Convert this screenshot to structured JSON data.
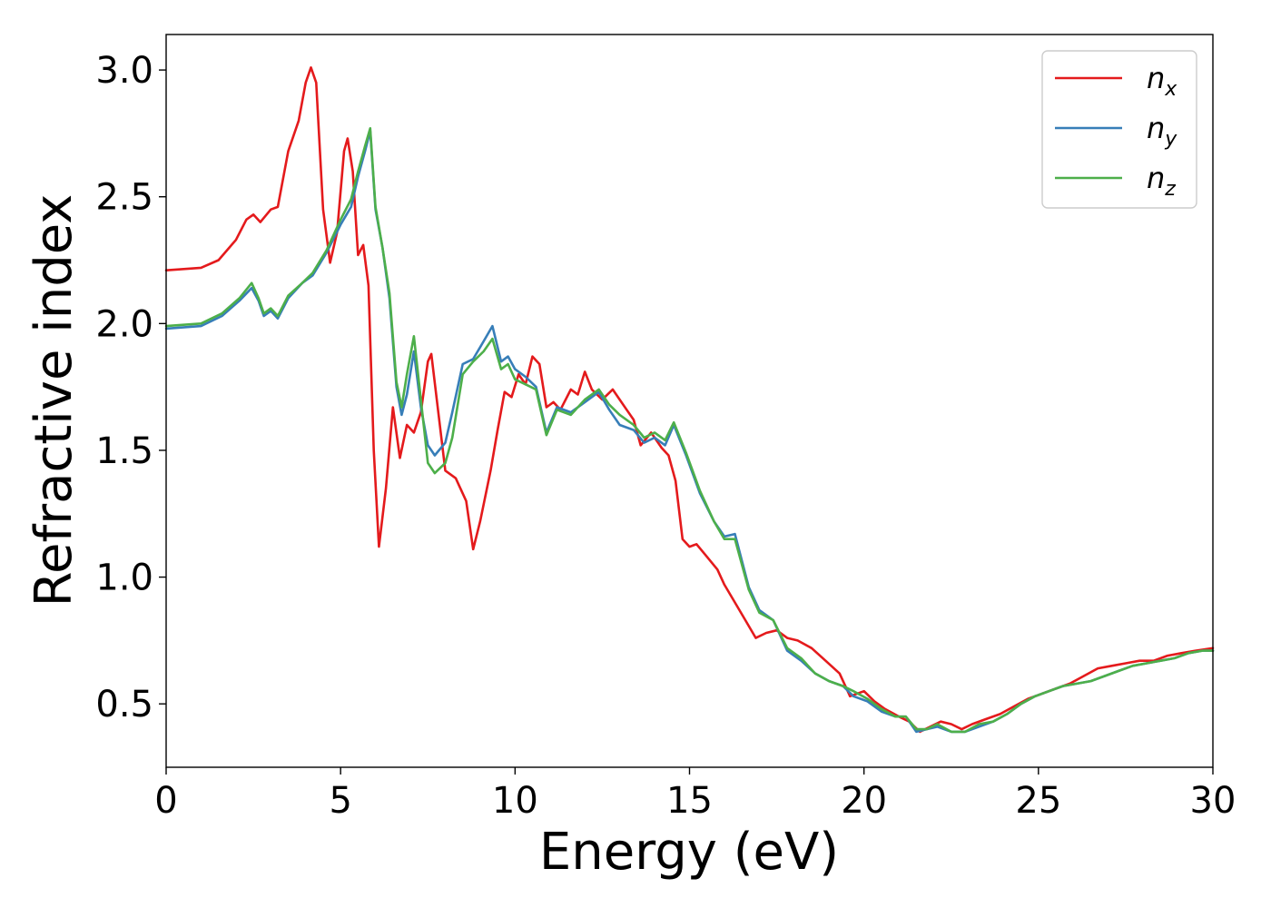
{
  "chart_data": {
    "type": "line",
    "title": "",
    "xlabel": "Energy (eV)",
    "ylabel": "Refractive index",
    "xlim": [
      0,
      30
    ],
    "ylim": [
      0.25,
      3.14
    ],
    "x_ticks": [
      0,
      5,
      10,
      15,
      20,
      25,
      30
    ],
    "x_tick_labels": [
      "0",
      "5",
      "10",
      "15",
      "20",
      "25",
      "30"
    ],
    "y_ticks": [
      0.5,
      1.0,
      1.5,
      2.0,
      2.5,
      3.0
    ],
    "y_tick_labels": [
      "0.5",
      "1.0",
      "1.5",
      "2.0",
      "2.5",
      "3.0"
    ],
    "grid": false,
    "legend_position": "top-right",
    "series": [
      {
        "name": "n",
        "subscript": "x",
        "color": "#e41a1c",
        "points": [
          [
            0,
            2.21
          ],
          [
            1,
            2.22
          ],
          [
            1.5,
            2.25
          ],
          [
            2,
            2.33
          ],
          [
            2.3,
            2.41
          ],
          [
            2.5,
            2.43
          ],
          [
            2.7,
            2.4
          ],
          [
            3.0,
            2.45
          ],
          [
            3.2,
            2.46
          ],
          [
            3.5,
            2.68
          ],
          [
            3.8,
            2.8
          ],
          [
            4.0,
            2.95
          ],
          [
            4.15,
            3.01
          ],
          [
            4.3,
            2.95
          ],
          [
            4.5,
            2.45
          ],
          [
            4.7,
            2.24
          ],
          [
            4.9,
            2.36
          ],
          [
            5.1,
            2.68
          ],
          [
            5.2,
            2.73
          ],
          [
            5.35,
            2.6
          ],
          [
            5.5,
            2.27
          ],
          [
            5.65,
            2.31
          ],
          [
            5.8,
            2.15
          ],
          [
            5.95,
            1.5
          ],
          [
            6.1,
            1.12
          ],
          [
            6.3,
            1.35
          ],
          [
            6.5,
            1.67
          ],
          [
            6.7,
            1.47
          ],
          [
            6.9,
            1.6
          ],
          [
            7.1,
            1.57
          ],
          [
            7.3,
            1.65
          ],
          [
            7.5,
            1.85
          ],
          [
            7.6,
            1.88
          ],
          [
            7.8,
            1.65
          ],
          [
            8.0,
            1.42
          ],
          [
            8.3,
            1.39
          ],
          [
            8.6,
            1.3
          ],
          [
            8.8,
            1.11
          ],
          [
            9.0,
            1.22
          ],
          [
            9.3,
            1.42
          ],
          [
            9.5,
            1.58
          ],
          [
            9.7,
            1.73
          ],
          [
            9.9,
            1.71
          ],
          [
            10.1,
            1.8
          ],
          [
            10.3,
            1.76
          ],
          [
            10.5,
            1.87
          ],
          [
            10.7,
            1.84
          ],
          [
            10.9,
            1.67
          ],
          [
            11.1,
            1.69
          ],
          [
            11.3,
            1.66
          ],
          [
            11.6,
            1.74
          ],
          [
            11.8,
            1.72
          ],
          [
            12.0,
            1.81
          ],
          [
            12.2,
            1.74
          ],
          [
            12.5,
            1.7
          ],
          [
            12.8,
            1.74
          ],
          [
            13.0,
            1.7
          ],
          [
            13.2,
            1.66
          ],
          [
            13.4,
            1.62
          ],
          [
            13.6,
            1.52
          ],
          [
            13.9,
            1.57
          ],
          [
            14.2,
            1.51
          ],
          [
            14.4,
            1.48
          ],
          [
            14.6,
            1.38
          ],
          [
            14.8,
            1.15
          ],
          [
            15.0,
            1.12
          ],
          [
            15.2,
            1.13
          ],
          [
            15.5,
            1.08
          ],
          [
            15.8,
            1.03
          ],
          [
            16.0,
            0.97
          ],
          [
            16.3,
            0.9
          ],
          [
            16.6,
            0.83
          ],
          [
            16.9,
            0.76
          ],
          [
            17.2,
            0.78
          ],
          [
            17.5,
            0.79
          ],
          [
            17.8,
            0.76
          ],
          [
            18.1,
            0.75
          ],
          [
            18.5,
            0.72
          ],
          [
            18.9,
            0.67
          ],
          [
            19.3,
            0.62
          ],
          [
            19.6,
            0.53
          ],
          [
            20.0,
            0.55
          ],
          [
            20.3,
            0.51
          ],
          [
            20.6,
            0.48
          ],
          [
            21.0,
            0.45
          ],
          [
            21.3,
            0.43
          ],
          [
            21.6,
            0.39
          ],
          [
            21.9,
            0.41
          ],
          [
            22.2,
            0.43
          ],
          [
            22.5,
            0.42
          ],
          [
            22.8,
            0.4
          ],
          [
            23.1,
            0.42
          ],
          [
            23.5,
            0.44
          ],
          [
            23.9,
            0.46
          ],
          [
            24.3,
            0.49
          ],
          [
            24.7,
            0.52
          ],
          [
            25.1,
            0.54
          ],
          [
            25.5,
            0.56
          ],
          [
            25.9,
            0.58
          ],
          [
            26.3,
            0.61
          ],
          [
            26.7,
            0.64
          ],
          [
            27.1,
            0.65
          ],
          [
            27.5,
            0.66
          ],
          [
            27.9,
            0.67
          ],
          [
            28.3,
            0.67
          ],
          [
            28.7,
            0.69
          ],
          [
            29.1,
            0.7
          ],
          [
            29.5,
            0.71
          ],
          [
            30.0,
            0.72
          ]
        ]
      },
      {
        "name": "n",
        "subscript": "y",
        "color": "#377eb8",
        "points": [
          [
            0,
            1.98
          ],
          [
            1,
            1.99
          ],
          [
            1.6,
            2.03
          ],
          [
            2.1,
            2.09
          ],
          [
            2.45,
            2.14
          ],
          [
            2.65,
            2.09
          ],
          [
            2.8,
            2.03
          ],
          [
            3.0,
            2.05
          ],
          [
            3.2,
            2.02
          ],
          [
            3.5,
            2.1
          ],
          [
            3.9,
            2.16
          ],
          [
            4.2,
            2.19
          ],
          [
            4.6,
            2.28
          ],
          [
            5.0,
            2.39
          ],
          [
            5.3,
            2.46
          ],
          [
            5.5,
            2.58
          ],
          [
            5.7,
            2.68
          ],
          [
            5.85,
            2.76
          ],
          [
            6.0,
            2.45
          ],
          [
            6.2,
            2.3
          ],
          [
            6.4,
            2.1
          ],
          [
            6.6,
            1.75
          ],
          [
            6.75,
            1.64
          ],
          [
            6.9,
            1.72
          ],
          [
            7.1,
            1.89
          ],
          [
            7.3,
            1.67
          ],
          [
            7.5,
            1.52
          ],
          [
            7.7,
            1.48
          ],
          [
            8.0,
            1.53
          ],
          [
            8.2,
            1.65
          ],
          [
            8.5,
            1.84
          ],
          [
            8.8,
            1.86
          ],
          [
            9.1,
            1.93
          ],
          [
            9.35,
            1.99
          ],
          [
            9.6,
            1.85
          ],
          [
            9.8,
            1.87
          ],
          [
            10.0,
            1.82
          ],
          [
            10.3,
            1.79
          ],
          [
            10.6,
            1.75
          ],
          [
            10.9,
            1.57
          ],
          [
            11.2,
            1.67
          ],
          [
            11.6,
            1.65
          ],
          [
            12.0,
            1.69
          ],
          [
            12.4,
            1.73
          ],
          [
            12.7,
            1.66
          ],
          [
            13.0,
            1.6
          ],
          [
            13.4,
            1.58
          ],
          [
            13.7,
            1.53
          ],
          [
            14.0,
            1.55
          ],
          [
            14.3,
            1.52
          ],
          [
            14.55,
            1.6
          ],
          [
            14.9,
            1.48
          ],
          [
            15.3,
            1.33
          ],
          [
            15.7,
            1.22
          ],
          [
            16.0,
            1.16
          ],
          [
            16.3,
            1.17
          ],
          [
            16.7,
            0.96
          ],
          [
            17.0,
            0.87
          ],
          [
            17.4,
            0.83
          ],
          [
            17.8,
            0.71
          ],
          [
            18.2,
            0.67
          ],
          [
            18.6,
            0.62
          ],
          [
            19.0,
            0.59
          ],
          [
            19.4,
            0.57
          ],
          [
            19.7,
            0.53
          ],
          [
            20.1,
            0.51
          ],
          [
            20.5,
            0.47
          ],
          [
            20.9,
            0.45
          ],
          [
            21.2,
            0.45
          ],
          [
            21.5,
            0.39
          ],
          [
            21.8,
            0.4
          ],
          [
            22.1,
            0.41
          ],
          [
            22.5,
            0.39
          ],
          [
            22.9,
            0.39
          ],
          [
            23.3,
            0.41
          ],
          [
            23.7,
            0.43
          ],
          [
            24.1,
            0.46
          ],
          [
            24.5,
            0.5
          ],
          [
            24.9,
            0.53
          ],
          [
            25.3,
            0.55
          ],
          [
            25.7,
            0.57
          ],
          [
            26.1,
            0.58
          ],
          [
            26.5,
            0.59
          ],
          [
            26.9,
            0.61
          ],
          [
            27.3,
            0.63
          ],
          [
            27.7,
            0.65
          ],
          [
            28.1,
            0.66
          ],
          [
            28.5,
            0.67
          ],
          [
            28.9,
            0.68
          ],
          [
            29.3,
            0.7
          ],
          [
            29.7,
            0.71
          ],
          [
            30.0,
            0.71
          ]
        ]
      },
      {
        "name": "n",
        "subscript": "z",
        "color": "#4daf4a",
        "points": [
          [
            0,
            1.99
          ],
          [
            1,
            2.0
          ],
          [
            1.6,
            2.04
          ],
          [
            2.1,
            2.1
          ],
          [
            2.45,
            2.16
          ],
          [
            2.65,
            2.1
          ],
          [
            2.8,
            2.04
          ],
          [
            3.0,
            2.06
          ],
          [
            3.2,
            2.03
          ],
          [
            3.5,
            2.11
          ],
          [
            3.9,
            2.16
          ],
          [
            4.2,
            2.2
          ],
          [
            4.6,
            2.29
          ],
          [
            5.0,
            2.41
          ],
          [
            5.3,
            2.49
          ],
          [
            5.5,
            2.6
          ],
          [
            5.7,
            2.7
          ],
          [
            5.85,
            2.77
          ],
          [
            6.0,
            2.46
          ],
          [
            6.2,
            2.3
          ],
          [
            6.4,
            2.12
          ],
          [
            6.6,
            1.77
          ],
          [
            6.75,
            1.67
          ],
          [
            6.9,
            1.8
          ],
          [
            7.1,
            1.95
          ],
          [
            7.3,
            1.7
          ],
          [
            7.5,
            1.45
          ],
          [
            7.7,
            1.41
          ],
          [
            8.0,
            1.45
          ],
          [
            8.2,
            1.55
          ],
          [
            8.5,
            1.8
          ],
          [
            8.8,
            1.85
          ],
          [
            9.1,
            1.89
          ],
          [
            9.35,
            1.94
          ],
          [
            9.6,
            1.82
          ],
          [
            9.8,
            1.84
          ],
          [
            10.0,
            1.78
          ],
          [
            10.3,
            1.76
          ],
          [
            10.6,
            1.74
          ],
          [
            10.9,
            1.56
          ],
          [
            11.2,
            1.66
          ],
          [
            11.6,
            1.64
          ],
          [
            12.0,
            1.7
          ],
          [
            12.4,
            1.74
          ],
          [
            12.7,
            1.68
          ],
          [
            13.0,
            1.64
          ],
          [
            13.4,
            1.6
          ],
          [
            13.7,
            1.55
          ],
          [
            14.0,
            1.57
          ],
          [
            14.3,
            1.54
          ],
          [
            14.55,
            1.61
          ],
          [
            14.9,
            1.49
          ],
          [
            15.3,
            1.34
          ],
          [
            15.7,
            1.22
          ],
          [
            16.0,
            1.15
          ],
          [
            16.3,
            1.15
          ],
          [
            16.7,
            0.95
          ],
          [
            17.0,
            0.86
          ],
          [
            17.4,
            0.83
          ],
          [
            17.8,
            0.72
          ],
          [
            18.2,
            0.68
          ],
          [
            18.6,
            0.62
          ],
          [
            19.0,
            0.59
          ],
          [
            19.4,
            0.57
          ],
          [
            19.7,
            0.55
          ],
          [
            20.1,
            0.52
          ],
          [
            20.5,
            0.48
          ],
          [
            20.9,
            0.45
          ],
          [
            21.2,
            0.45
          ],
          [
            21.5,
            0.4
          ],
          [
            21.8,
            0.4
          ],
          [
            22.1,
            0.42
          ],
          [
            22.5,
            0.39
          ],
          [
            22.9,
            0.39
          ],
          [
            23.3,
            0.42
          ],
          [
            23.7,
            0.43
          ],
          [
            24.1,
            0.46
          ],
          [
            24.5,
            0.5
          ],
          [
            24.9,
            0.53
          ],
          [
            25.3,
            0.55
          ],
          [
            25.7,
            0.57
          ],
          [
            26.1,
            0.58
          ],
          [
            26.5,
            0.59
          ],
          [
            26.9,
            0.61
          ],
          [
            27.3,
            0.63
          ],
          [
            27.7,
            0.65
          ],
          [
            28.1,
            0.66
          ],
          [
            28.5,
            0.67
          ],
          [
            28.9,
            0.68
          ],
          [
            29.3,
            0.7
          ],
          [
            29.7,
            0.71
          ],
          [
            30.0,
            0.71
          ]
        ]
      }
    ]
  }
}
